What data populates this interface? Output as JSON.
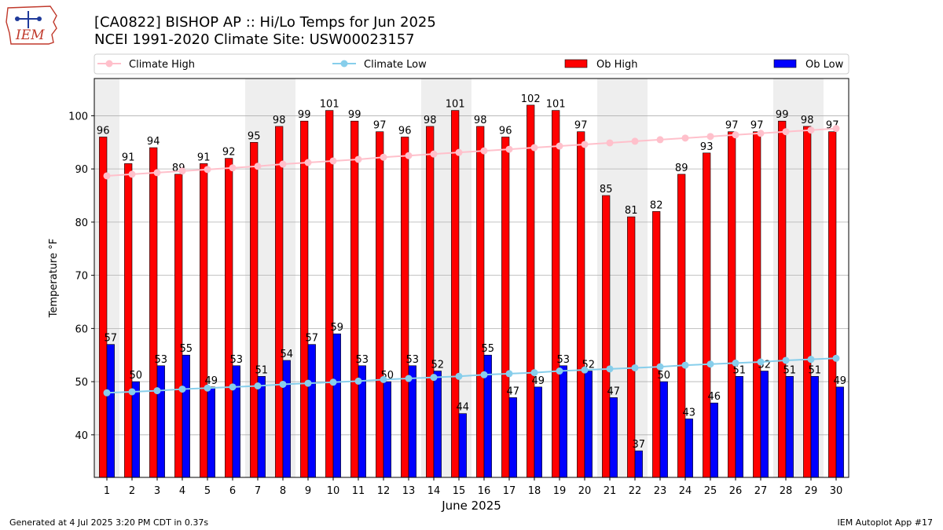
{
  "header": {
    "title_line1": "[CA0822] BISHOP AP :: Hi/Lo Temps for Jun 2025",
    "title_line2": "NCEI 1991-2020 Climate Site: USW00023157",
    "logo_text": "IEM"
  },
  "footer": {
    "generated": "Generated at 4 Jul 2025 3:20 PM CDT in 0.37s",
    "app": "IEM Autoplot App #17"
  },
  "colors": {
    "ob_high": "#ff0000",
    "ob_low": "#0000ff",
    "climate_high": "#ffc0cb",
    "climate_low": "#87ceeb",
    "weekend_shade": "#eeeeee",
    "grid": "#b0b0b0"
  },
  "chart_data": {
    "type": "bar",
    "xlabel": "June 2025",
    "ylabel": "Temperature °F",
    "ylim": [
      32,
      107
    ],
    "yticks": [
      40,
      50,
      60,
      70,
      80,
      90,
      100
    ],
    "grid": "horizontal",
    "legend_position": "top",
    "categories": [
      1,
      2,
      3,
      4,
      5,
      6,
      7,
      8,
      9,
      10,
      11,
      12,
      13,
      14,
      15,
      16,
      17,
      18,
      19,
      20,
      21,
      22,
      23,
      24,
      25,
      26,
      27,
      28,
      29,
      30
    ],
    "shaded_days": [
      1,
      7,
      8,
      14,
      15,
      21,
      22,
      28,
      29
    ],
    "series": [
      {
        "name": "Climate High",
        "type": "line",
        "values": [
          88.7,
          89.0,
          89.3,
          89.6,
          89.9,
          90.2,
          90.5,
          90.9,
          91.2,
          91.5,
          91.8,
          92.2,
          92.5,
          92.8,
          93.1,
          93.4,
          93.7,
          94.0,
          94.3,
          94.6,
          94.9,
          95.2,
          95.5,
          95.8,
          96.1,
          96.4,
          96.7,
          97.0,
          97.3,
          97.6
        ]
      },
      {
        "name": "Climate Low",
        "type": "line",
        "values": [
          47.9,
          48.1,
          48.3,
          48.6,
          48.8,
          49.0,
          49.2,
          49.5,
          49.7,
          49.9,
          50.1,
          50.4,
          50.6,
          50.8,
          51.0,
          51.3,
          51.5,
          51.7,
          52.0,
          52.2,
          52.4,
          52.6,
          52.8,
          53.1,
          53.3,
          53.5,
          53.7,
          54.0,
          54.2,
          54.4
        ]
      },
      {
        "name": "Ob High",
        "type": "bar",
        "values": [
          96,
          91,
          94,
          89,
          91,
          92,
          95,
          98,
          99,
          101,
          99,
          97,
          96,
          98,
          101,
          98,
          96,
          102,
          101,
          97,
          85,
          81,
          82,
          89,
          93,
          97,
          97,
          99,
          98,
          97
        ]
      },
      {
        "name": "Ob Low",
        "type": "bar",
        "values": [
          57,
          50,
          53,
          55,
          49,
          53,
          51,
          54,
          57,
          59,
          53,
          50,
          53,
          52,
          44,
          55,
          47,
          49,
          53,
          52,
          47,
          37,
          50,
          43,
          46,
          51,
          52,
          51,
          51,
          49
        ]
      }
    ]
  }
}
